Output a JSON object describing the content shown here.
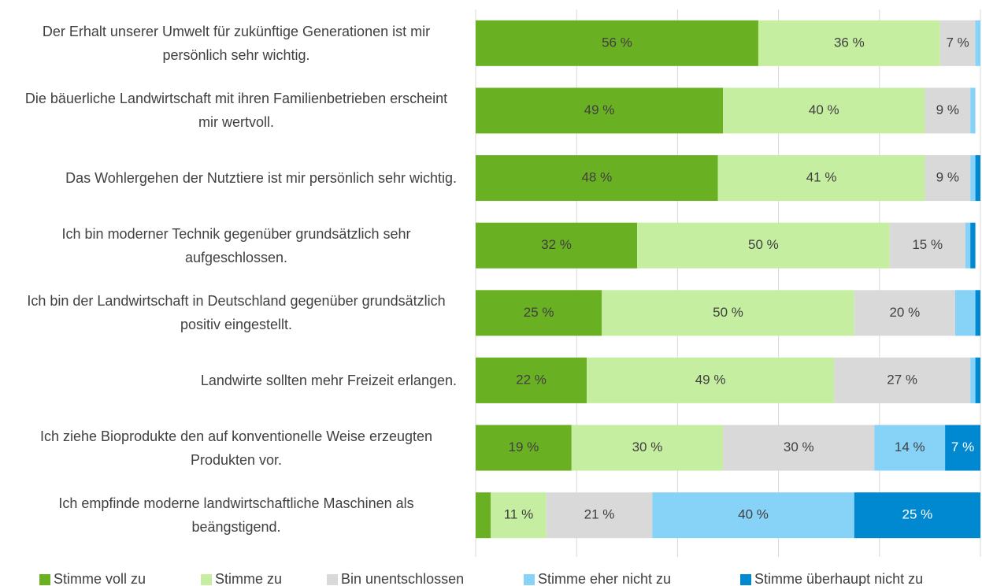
{
  "chart_data": {
    "type": "stacked_bar_horizontal",
    "categories": [
      "Der Erhalt unserer Umwelt für zukünftige Generationen ist mir persönlich sehr wichtig.",
      "Die bäuerliche Landwirtschaft mit ihren Familienbetrieben erscheint mir wertvoll.",
      "Das Wohlergehen der Nutztiere ist mir persönlich sehr wichtig.",
      "Ich bin moderner Technik gegenüber grundsätzlich sehr aufgeschlossen.",
      "Ich bin der Landwirtschaft in Deutschland gegenüber grundsätzlich positiv eingestellt.",
      "Landwirte sollten mehr Freizeit erlangen.",
      "Ich ziehe Bioprodukte den auf konventionelle Weise erzeugten Produkten vor.",
      "Ich empfinde moderne landwirtschaftliche Maschinen als beängstigend."
    ],
    "series": [
      {
        "name": "Stimme voll zu",
        "color": "#6ab023",
        "label_color": "#404040",
        "values": [
          56,
          49,
          48,
          32,
          25,
          22,
          19,
          3
        ],
        "value_labels": [
          "56 %",
          "49 %",
          "48 %",
          "32 %",
          "25 %",
          "22 %",
          "19 %",
          null
        ]
      },
      {
        "name": "Stimme zu",
        "color": "#c6eea0",
        "label_color": "#404040",
        "values": [
          36,
          40,
          41,
          50,
          50,
          49,
          30,
          11
        ],
        "value_labels": [
          "36 %",
          "40 %",
          "41 %",
          "50 %",
          "50 %",
          "49 %",
          "30 %",
          "11 %"
        ]
      },
      {
        "name": "Bin unentschlossen",
        "color": "#d9d9d9",
        "label_color": "#404040",
        "values": [
          7,
          9,
          9,
          15,
          20,
          27,
          30,
          21
        ],
        "value_labels": [
          "7 %",
          "9 %",
          "9 %",
          "15 %",
          "20 %",
          "27 %",
          "30 %",
          "21 %"
        ]
      },
      {
        "name": "Stimme eher nicht zu",
        "color": "#87d3f8",
        "label_color": "#404040",
        "values": [
          1,
          1,
          1,
          1,
          4,
          1,
          14,
          40
        ],
        "value_labels": [
          null,
          null,
          null,
          null,
          null,
          null,
          "14 %",
          "40 %"
        ]
      },
      {
        "name": "Stimme überhaupt nicht zu",
        "color": "#0089d0",
        "label_color": "#ffffff",
        "values": [
          0,
          0,
          1,
          1,
          1,
          1,
          7,
          25
        ],
        "value_labels": [
          null,
          null,
          null,
          null,
          null,
          null,
          "7 %",
          "25 %"
        ]
      }
    ],
    "xlim": [
      0,
      100
    ],
    "xticks": [
      0,
      20,
      40,
      60,
      80,
      100
    ],
    "grid": true,
    "legend": "bottom"
  }
}
